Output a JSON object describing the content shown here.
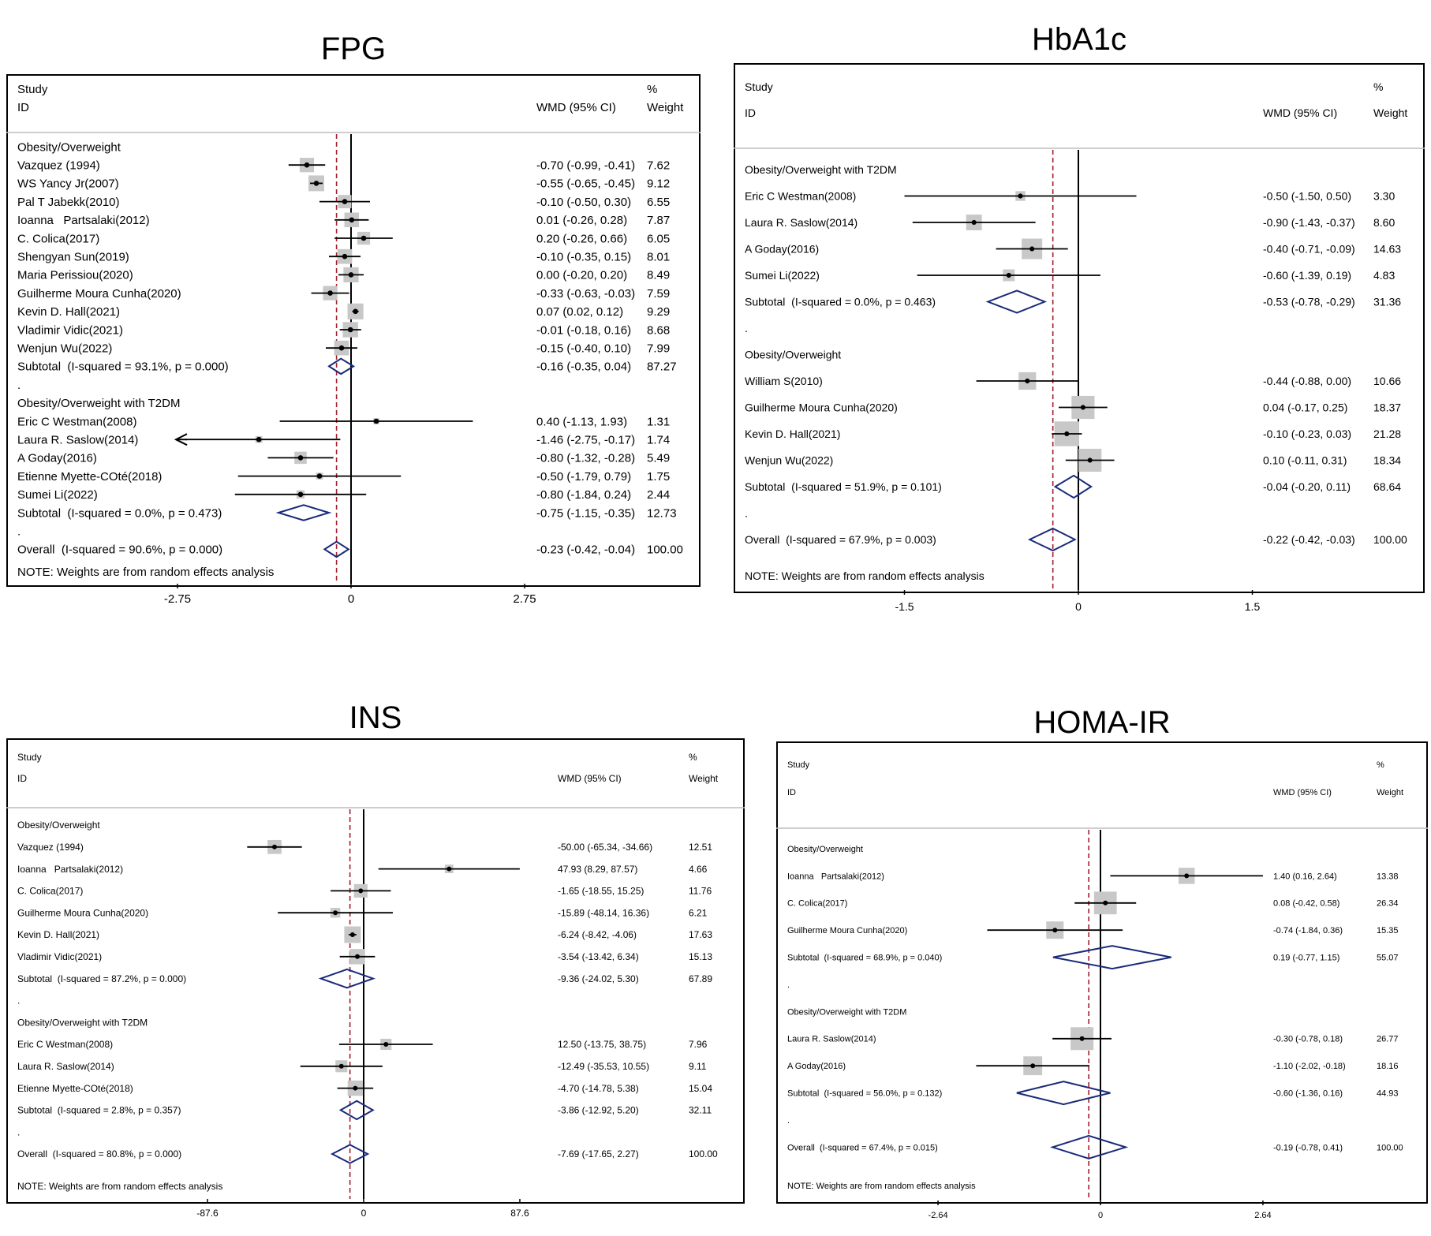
{
  "chart_data": [
    {
      "type": "forest",
      "title": "FPG",
      "header": {
        "study": "Study",
        "id": "ID",
        "effect": "WMD (95% CI)",
        "pct": "%",
        "weight": "Weight"
      },
      "xlim": [
        -5.5,
        5.5
      ],
      "ticks": [
        -2.75,
        0,
        2.75
      ],
      "tick_labels": [
        "-2.75",
        "0",
        "2.75"
      ],
      "overall_line": -0.23,
      "note": "NOTE: Weights are from random effects analysis",
      "rows": [
        {
          "kind": "group",
          "label": "Obesity/Overweight"
        },
        {
          "kind": "study",
          "label": "Vazquez (1994)",
          "est": -0.7,
          "lo": -0.99,
          "hi": -0.41,
          "weight": 7.62,
          "ci_text": "-0.70 (-0.99, -0.41)",
          "weight_text": "7.62"
        },
        {
          "kind": "study",
          "label": "WS Yancy Jr(2007)",
          "est": -0.55,
          "lo": -0.65,
          "hi": -0.45,
          "weight": 9.12,
          "ci_text": "-0.55 (-0.65, -0.45)",
          "weight_text": "9.12"
        },
        {
          "kind": "study",
          "label": "Pal T Jabekk(2010)",
          "est": -0.1,
          "lo": -0.5,
          "hi": 0.3,
          "weight": 6.55,
          "ci_text": "-0.10 (-0.50, 0.30)",
          "weight_text": "6.55"
        },
        {
          "kind": "study",
          "label": "Ioanna   Partsalaki(2012)",
          "est": 0.01,
          "lo": -0.26,
          "hi": 0.28,
          "weight": 7.87,
          "ci_text": "0.01 (-0.26, 0.28)",
          "weight_text": "7.87"
        },
        {
          "kind": "study",
          "label": "C. Colica(2017)",
          "est": 0.2,
          "lo": -0.26,
          "hi": 0.66,
          "weight": 6.05,
          "ci_text": "0.20 (-0.26, 0.66)",
          "weight_text": "6.05"
        },
        {
          "kind": "study",
          "label": "Shengyan Sun(2019)",
          "est": -0.1,
          "lo": -0.35,
          "hi": 0.15,
          "weight": 8.01,
          "ci_text": "-0.10 (-0.35, 0.15)",
          "weight_text": "8.01"
        },
        {
          "kind": "study",
          "label": "Maria Perissiou(2020)",
          "est": 0.0,
          "lo": -0.2,
          "hi": 0.2,
          "weight": 8.49,
          "ci_text": "0.00 (-0.20, 0.20)",
          "weight_text": "8.49"
        },
        {
          "kind": "study",
          "label": "Guilherme Moura Cunha(2020)",
          "est": -0.33,
          "lo": -0.63,
          "hi": -0.03,
          "weight": 7.59,
          "ci_text": "-0.33 (-0.63, -0.03)",
          "weight_text": "7.59"
        },
        {
          "kind": "study",
          "label": "Kevin D. Hall(2021)",
          "est": 0.07,
          "lo": 0.02,
          "hi": 0.12,
          "weight": 9.29,
          "ci_text": "0.07 (0.02, 0.12)",
          "weight_text": "9.29"
        },
        {
          "kind": "study",
          "label": "Vladimir Vidic(2021)",
          "est": -0.01,
          "lo": -0.18,
          "hi": 0.16,
          "weight": 8.68,
          "ci_text": "-0.01 (-0.18, 0.16)",
          "weight_text": "8.68"
        },
        {
          "kind": "study",
          "label": "Wenjun Wu(2022)",
          "est": -0.15,
          "lo": -0.4,
          "hi": 0.1,
          "weight": 7.99,
          "ci_text": "-0.15 (-0.40, 0.10)",
          "weight_text": "7.99"
        },
        {
          "kind": "subtotal",
          "label": "Subtotal  (I-squared = 93.1%, p = 0.000)",
          "est": -0.16,
          "lo": -0.35,
          "hi": 0.04,
          "ci_text": "-0.16 (-0.35, 0.04)",
          "weight_text": "87.27"
        },
        {
          "kind": "dot",
          "label": "."
        },
        {
          "kind": "group",
          "label": "Obesity/Overweight with T2DM"
        },
        {
          "kind": "study",
          "label": "Eric C Westman(2008)",
          "est": 0.4,
          "lo": -1.13,
          "hi": 1.93,
          "weight": 1.31,
          "ci_text": "0.40 (-1.13, 1.93)",
          "weight_text": "1.31"
        },
        {
          "kind": "study",
          "label": "Laura R. Saslow(2014)",
          "est": -1.46,
          "lo": -2.75,
          "hi": -0.17,
          "weight": 1.74,
          "ci_text": "-1.46 (-2.75, -0.17)",
          "weight_text": "1.74",
          "arrow_left": true
        },
        {
          "kind": "study",
          "label": "A Goday(2016)",
          "est": -0.8,
          "lo": -1.32,
          "hi": -0.28,
          "weight": 5.49,
          "ci_text": "-0.80 (-1.32, -0.28)",
          "weight_text": "5.49"
        },
        {
          "kind": "study",
          "label": "Etienne Myette-COté(2018)",
          "est": -0.5,
          "lo": -1.79,
          "hi": 0.79,
          "weight": 1.75,
          "ci_text": "-0.50 (-1.79, 0.79)",
          "weight_text": "1.75"
        },
        {
          "kind": "study",
          "label": "Sumei Li(2022)",
          "est": -0.8,
          "lo": -1.84,
          "hi": 0.24,
          "weight": 2.44,
          "ci_text": "-0.80 (-1.84, 0.24)",
          "weight_text": "2.44"
        },
        {
          "kind": "subtotal",
          "label": "Subtotal  (I-squared = 0.0%, p = 0.473)",
          "est": -0.75,
          "lo": -1.15,
          "hi": -0.35,
          "ci_text": "-0.75 (-1.15, -0.35)",
          "weight_text": "12.73"
        },
        {
          "kind": "dot",
          "label": "."
        },
        {
          "kind": "overall",
          "label": "Overall  (I-squared = 90.6%, p = 0.000)",
          "est": -0.23,
          "lo": -0.42,
          "hi": -0.04,
          "ci_text": "-0.23 (-0.42, -0.04)",
          "weight_text": "100.00"
        }
      ]
    },
    {
      "type": "forest",
      "title": "HbA1c",
      "header": {
        "study": "Study",
        "id": "ID",
        "effect": "WMD (95% CI)",
        "pct": "%",
        "weight": "Weight"
      },
      "xlim": [
        -2.5,
        2.5
      ],
      "ticks": [
        -1.5,
        0,
        1.5
      ],
      "tick_labels": [
        "-1.5",
        "0",
        "1.5"
      ],
      "overall_line": -0.22,
      "note": "NOTE: Weights are from random effects analysis",
      "rows": [
        {
          "kind": "group",
          "label": "Obesity/Overweight with T2DM"
        },
        {
          "kind": "study",
          "label": "Eric C Westman(2008)",
          "est": -0.5,
          "lo": -1.5,
          "hi": 0.5,
          "weight": 3.3,
          "ci_text": "-0.50 (-1.50, 0.50)",
          "weight_text": "3.30"
        },
        {
          "kind": "study",
          "label": "Laura R. Saslow(2014)",
          "est": -0.9,
          "lo": -1.43,
          "hi": -0.37,
          "weight": 8.6,
          "ci_text": "-0.90 (-1.43, -0.37)",
          "weight_text": "8.60"
        },
        {
          "kind": "study",
          "label": "A Goday(2016)",
          "est": -0.4,
          "lo": -0.71,
          "hi": -0.09,
          "weight": 14.63,
          "ci_text": "-0.40 (-0.71, -0.09)",
          "weight_text": "14.63"
        },
        {
          "kind": "study",
          "label": "Sumei Li(2022)",
          "est": -0.6,
          "lo": -1.39,
          "hi": 0.19,
          "weight": 4.83,
          "ci_text": "-0.60 (-1.39, 0.19)",
          "weight_text": "4.83"
        },
        {
          "kind": "subtotal",
          "label": "Subtotal  (I-squared = 0.0%, p = 0.463)",
          "est": -0.53,
          "lo": -0.78,
          "hi": -0.29,
          "ci_text": "-0.53 (-0.78, -0.29)",
          "weight_text": "31.36"
        },
        {
          "kind": "dot",
          "label": "."
        },
        {
          "kind": "group",
          "label": "Obesity/Overweight"
        },
        {
          "kind": "study",
          "label": "William S(2010)",
          "est": -0.44,
          "lo": -0.88,
          "hi": 0.0,
          "weight": 10.66,
          "ci_text": "-0.44 (-0.88, 0.00)",
          "weight_text": "10.66"
        },
        {
          "kind": "study",
          "label": "Guilherme Moura Cunha(2020)",
          "est": 0.04,
          "lo": -0.17,
          "hi": 0.25,
          "weight": 18.37,
          "ci_text": "0.04 (-0.17, 0.25)",
          "weight_text": "18.37"
        },
        {
          "kind": "study",
          "label": "Kevin D. Hall(2021)",
          "est": -0.1,
          "lo": -0.23,
          "hi": 0.03,
          "weight": 21.28,
          "ci_text": "-0.10 (-0.23, 0.03)",
          "weight_text": "21.28"
        },
        {
          "kind": "study",
          "label": "Wenjun Wu(2022)",
          "est": 0.1,
          "lo": -0.11,
          "hi": 0.31,
          "weight": 18.34,
          "ci_text": "0.10 (-0.11, 0.31)",
          "weight_text": "18.34"
        },
        {
          "kind": "subtotal",
          "label": "Subtotal  (I-squared = 51.9%, p = 0.101)",
          "est": -0.04,
          "lo": -0.2,
          "hi": 0.11,
          "ci_text": "-0.04 (-0.20, 0.11)",
          "weight_text": "68.64"
        },
        {
          "kind": "dot",
          "label": "."
        },
        {
          "kind": "overall",
          "label": "Overall  (I-squared = 67.9%, p = 0.003)",
          "est": -0.22,
          "lo": -0.42,
          "hi": -0.03,
          "ci_text": "-0.22 (-0.42, -0.03)",
          "weight_text": "100.00"
        }
      ]
    },
    {
      "type": "forest",
      "title": "INS",
      "header": {
        "study": "Study",
        "id": "ID",
        "effect": "WMD (95% CI)",
        "pct": "%",
        "weight": "Weight"
      },
      "xlim": [
        -175.2,
        175.2
      ],
      "ticks": [
        -87.6,
        0,
        87.6
      ],
      "tick_labels": [
        "-87.6",
        "0",
        "87.6"
      ],
      "overall_line": -7.69,
      "note": "NOTE: Weights are from random effects analysis",
      "rows": [
        {
          "kind": "group",
          "label": "Obesity/Overweight"
        },
        {
          "kind": "study",
          "label": "Vazquez (1994)",
          "est": -50.0,
          "lo": -65.34,
          "hi": -34.66,
          "weight": 12.51,
          "ci_text": "-50.00 (-65.34, -34.66)",
          "weight_text": "12.51"
        },
        {
          "kind": "study",
          "label": "Ioanna   Partsalaki(2012)",
          "est": 47.93,
          "lo": 8.29,
          "hi": 87.57,
          "weight": 4.66,
          "ci_text": "47.93 (8.29, 87.57)",
          "weight_text": "4.66"
        },
        {
          "kind": "study",
          "label": "C. Colica(2017)",
          "est": -1.65,
          "lo": -18.55,
          "hi": 15.25,
          "weight": 11.76,
          "ci_text": "-1.65 (-18.55, 15.25)",
          "weight_text": "11.76"
        },
        {
          "kind": "study",
          "label": "Guilherme Moura Cunha(2020)",
          "est": -15.89,
          "lo": -48.14,
          "hi": 16.36,
          "weight": 6.21,
          "ci_text": "-15.89 (-48.14, 16.36)",
          "weight_text": "6.21"
        },
        {
          "kind": "study",
          "label": "Kevin D. Hall(2021)",
          "est": -6.24,
          "lo": -8.42,
          "hi": -4.06,
          "weight": 17.63,
          "ci_text": "-6.24 (-8.42, -4.06)",
          "weight_text": "17.63"
        },
        {
          "kind": "study",
          "label": "Vladimir Vidic(2021)",
          "est": -3.54,
          "lo": -13.42,
          "hi": 6.34,
          "weight": 15.13,
          "ci_text": "-3.54 (-13.42, 6.34)",
          "weight_text": "15.13"
        },
        {
          "kind": "subtotal",
          "label": "Subtotal  (I-squared = 87.2%, p = 0.000)",
          "est": -9.36,
          "lo": -24.02,
          "hi": 5.3,
          "ci_text": "-9.36 (-24.02, 5.30)",
          "weight_text": "67.89"
        },
        {
          "kind": "dot",
          "label": "."
        },
        {
          "kind": "group",
          "label": "Obesity/Overweight with T2DM"
        },
        {
          "kind": "study",
          "label": "Eric C Westman(2008)",
          "est": 12.5,
          "lo": -13.75,
          "hi": 38.75,
          "weight": 7.96,
          "ci_text": "12.50 (-13.75, 38.75)",
          "weight_text": "7.96"
        },
        {
          "kind": "study",
          "label": "Laura R. Saslow(2014)",
          "est": -12.49,
          "lo": -35.53,
          "hi": 10.55,
          "weight": 9.11,
          "ci_text": "-12.49 (-35.53, 10.55)",
          "weight_text": "9.11"
        },
        {
          "kind": "study",
          "label": "Etienne Myette-COté(2018)",
          "est": -4.7,
          "lo": -14.78,
          "hi": 5.38,
          "weight": 15.04,
          "ci_text": "-4.70 (-14.78, 5.38)",
          "weight_text": "15.04"
        },
        {
          "kind": "subtotal",
          "label": "Subtotal  (I-squared = 2.8%, p = 0.357)",
          "est": -3.86,
          "lo": -12.92,
          "hi": 5.2,
          "ci_text": "-3.86 (-12.92, 5.20)",
          "weight_text": "32.11"
        },
        {
          "kind": "dot",
          "label": "."
        },
        {
          "kind": "overall",
          "label": "Overall  (I-squared = 80.8%, p = 0.000)",
          "est": -7.69,
          "lo": -17.65,
          "hi": 2.27,
          "ci_text": "-7.69 (-17.65, 2.27)",
          "weight_text": "100.00"
        }
      ]
    },
    {
      "type": "forest",
      "title": "HOMA-IR",
      "header": {
        "study": "Study",
        "id": "ID",
        "effect": "WMD (95% CI)",
        "pct": "%",
        "weight": "Weight"
      },
      "xlim": [
        -5.28,
        5.28
      ],
      "ticks": [
        -2.64,
        0,
        2.64
      ],
      "tick_labels": [
        "-2.64",
        "0",
        "2.64"
      ],
      "overall_line": -0.19,
      "note": "NOTE: Weights are from random effects analysis",
      "rows": [
        {
          "kind": "group",
          "label": "Obesity/Overweight"
        },
        {
          "kind": "study",
          "label": "Ioanna   Partsalaki(2012)",
          "est": 1.4,
          "lo": 0.16,
          "hi": 2.64,
          "weight": 13.38,
          "ci_text": "1.40 (0.16, 2.64)",
          "weight_text": "13.38"
        },
        {
          "kind": "study",
          "label": "C. Colica(2017)",
          "est": 0.08,
          "lo": -0.42,
          "hi": 0.58,
          "weight": 26.34,
          "ci_text": "0.08 (-0.42, 0.58)",
          "weight_text": "26.34"
        },
        {
          "kind": "study",
          "label": "Guilherme Moura Cunha(2020)",
          "est": -0.74,
          "lo": -1.84,
          "hi": 0.36,
          "weight": 15.35,
          "ci_text": "-0.74 (-1.84, 0.36)",
          "weight_text": "15.35"
        },
        {
          "kind": "subtotal",
          "label": "Subtotal  (I-squared = 68.9%, p = 0.040)",
          "est": 0.19,
          "lo": -0.77,
          "hi": 1.15,
          "ci_text": "0.19 (-0.77, 1.15)",
          "weight_text": "55.07"
        },
        {
          "kind": "dot",
          "label": "."
        },
        {
          "kind": "group",
          "label": "Obesity/Overweight with T2DM"
        },
        {
          "kind": "study",
          "label": "Laura R. Saslow(2014)",
          "est": -0.3,
          "lo": -0.78,
          "hi": 0.18,
          "weight": 26.77,
          "ci_text": "-0.30 (-0.78, 0.18)",
          "weight_text": "26.77"
        },
        {
          "kind": "study",
          "label": "A Goday(2016)",
          "est": -1.1,
          "lo": -2.02,
          "hi": -0.18,
          "weight": 18.16,
          "ci_text": "-1.10 (-2.02, -0.18)",
          "weight_text": "18.16"
        },
        {
          "kind": "subtotal",
          "label": "Subtotal  (I-squared = 56.0%, p = 0.132)",
          "est": -0.6,
          "lo": -1.36,
          "hi": 0.16,
          "ci_text": "-0.60 (-1.36, 0.16)",
          "weight_text": "44.93"
        },
        {
          "kind": "dot",
          "label": "."
        },
        {
          "kind": "overall",
          "label": "Overall  (I-squared = 67.4%, p = 0.015)",
          "est": -0.19,
          "lo": -0.78,
          "hi": 0.41,
          "ci_text": "-0.19 (-0.78, 0.41)",
          "weight_text": "100.00"
        }
      ]
    }
  ]
}
